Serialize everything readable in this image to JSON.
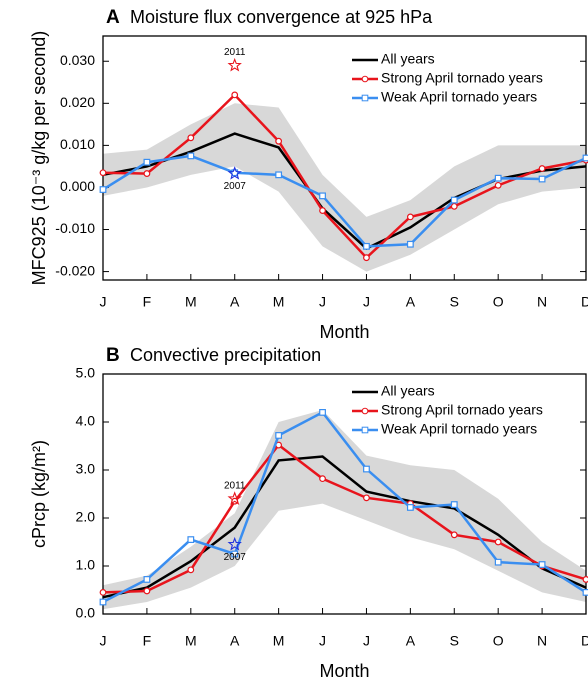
{
  "chart_data": [
    {
      "type": "line",
      "panel_label": "A",
      "title": "Moisture flux convergence at 925 hPa",
      "xlabel": "Month",
      "ylabel": "MFC925 (10⁻³ g/kg per second)",
      "categories": [
        "J",
        "F",
        "M",
        "A",
        "M",
        "J",
        "J",
        "A",
        "S",
        "O",
        "N",
        "D"
      ],
      "ylim": [
        -0.022,
        0.036
      ],
      "yticks": [
        {
          "value": -0.02,
          "label": "-0.020"
        },
        {
          "value": -0.01,
          "label": "-0.010"
        },
        {
          "value": 0,
          "label": "0.000"
        },
        {
          "value": 0.01,
          "label": "0.010"
        },
        {
          "value": 0.02,
          "label": "0.020"
        },
        {
          "value": 0.03,
          "label": "0.030"
        }
      ],
      "band": {
        "color": "#d8d8d8",
        "upper": [
          0.008,
          0.009,
          0.015,
          0.02,
          0.019,
          0.003,
          -0.007,
          -0.003,
          0.005,
          0.01,
          0.01,
          0.01
        ],
        "lower": [
          -0.002,
          0.0,
          0.003,
          0.005,
          -0.001,
          -0.014,
          -0.02,
          -0.016,
          -0.01,
          -0.004,
          -0.001,
          0.0
        ]
      },
      "series": [
        {
          "name": "All years",
          "color": "#000000",
          "marker": "none",
          "values": [
            0.003,
            0.005,
            0.0085,
            0.0128,
            0.0095,
            -0.005,
            -0.0145,
            -0.0095,
            -0.0025,
            0.002,
            0.004,
            0.005
          ]
        },
        {
          "name": "Strong April tornado years",
          "color": "#e8141c",
          "marker": "circle",
          "values": [
            0.0035,
            0.0033,
            0.0118,
            0.022,
            0.011,
            -0.0055,
            -0.0167,
            -0.007,
            -0.0045,
            0.0005,
            0.0045,
            0.0065
          ]
        },
        {
          "name": "Weak April tornado years",
          "color": "#3a8ef0",
          "marker": "square",
          "values": [
            -0.0005,
            0.006,
            0.0075,
            0.0035,
            0.003,
            -0.002,
            -0.014,
            -0.0135,
            -0.003,
            0.0022,
            0.002,
            0.007
          ]
        }
      ],
      "annotations": [
        {
          "label": "2011",
          "x": "A",
          "value": 0.029,
          "color": "#e8141c",
          "above": true
        },
        {
          "label": "2007",
          "x": "A",
          "value": 0.0033,
          "color": "#2233dd",
          "above": false
        }
      ]
    },
    {
      "type": "line",
      "panel_label": "B",
      "title": "Convective precipitation",
      "xlabel": "Month",
      "ylabel": "cPrcp (kg/m²)",
      "categories": [
        "J",
        "F",
        "M",
        "A",
        "M",
        "J",
        "J",
        "A",
        "S",
        "O",
        "N",
        "D"
      ],
      "ylim": [
        0,
        5
      ],
      "yticks": [
        {
          "value": 0,
          "label": "0.0"
        },
        {
          "value": 1,
          "label": "1.0"
        },
        {
          "value": 2,
          "label": "2.0"
        },
        {
          "value": 3,
          "label": "3.0"
        },
        {
          "value": 4,
          "label": "4.0"
        },
        {
          "value": 5,
          "label": "5.0"
        }
      ],
      "band": {
        "color": "#d8d8d8",
        "upper": [
          0.6,
          0.8,
          1.4,
          2.1,
          4.0,
          4.25,
          3.3,
          3.1,
          3.0,
          2.4,
          1.5,
          0.9
        ],
        "lower": [
          0.1,
          0.25,
          0.55,
          1.0,
          2.15,
          2.3,
          1.95,
          1.6,
          1.35,
          0.9,
          0.45,
          0.25
        ]
      },
      "series": [
        {
          "name": "All years",
          "color": "#000000",
          "marker": "none",
          "values": [
            0.35,
            0.55,
            1.1,
            1.8,
            3.2,
            3.28,
            2.55,
            2.35,
            2.2,
            1.65,
            0.95,
            0.55
          ]
        },
        {
          "name": "Strong April tornado years",
          "color": "#e8141c",
          "marker": "circle",
          "values": [
            0.45,
            0.48,
            0.92,
            2.35,
            3.52,
            2.82,
            2.42,
            2.3,
            1.65,
            1.5,
            1.0,
            0.72
          ]
        },
        {
          "name": "Weak April tornado years",
          "color": "#3a8ef0",
          "marker": "square",
          "values": [
            0.25,
            0.72,
            1.55,
            1.25,
            3.72,
            4.2,
            3.02,
            2.22,
            2.28,
            1.08,
            1.03,
            0.45
          ]
        }
      ],
      "annotations": [
        {
          "label": "2011",
          "x": "A",
          "value": 2.4,
          "color": "#e8141c",
          "above": true
        },
        {
          "label": "2007",
          "x": "A",
          "value": 1.45,
          "color": "#2233dd",
          "above": false
        }
      ]
    }
  ]
}
